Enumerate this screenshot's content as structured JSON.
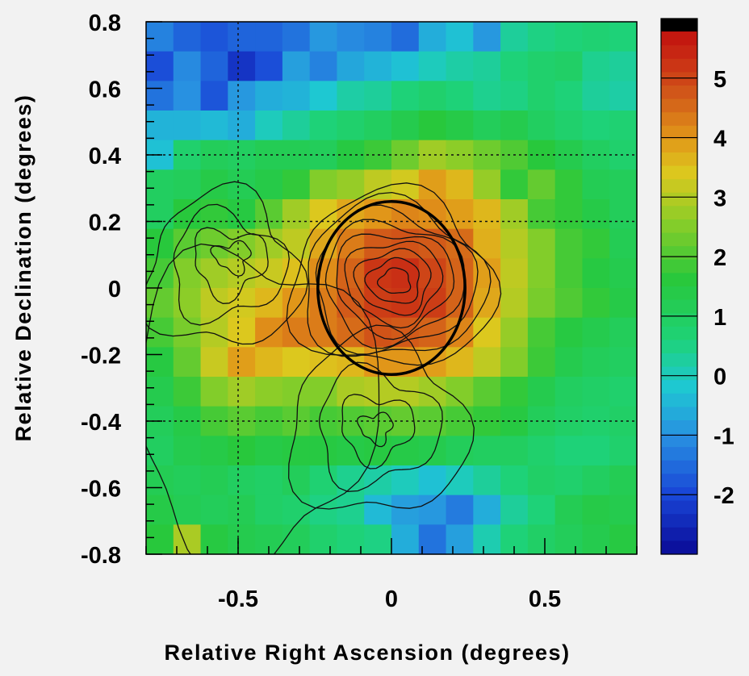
{
  "chart_data": {
    "type": "heatmap",
    "title": "",
    "xlabel": "Relative Right Ascension (degrees)",
    "ylabel": "Relative Declination (degrees)",
    "xlim": [
      -0.8,
      0.8
    ],
    "ylim": [
      -0.8,
      0.8
    ],
    "x_ticks": [
      -0.5,
      0,
      0.5
    ],
    "x_tick_labels": [
      "-0.5",
      "0",
      "0.5"
    ],
    "y_ticks": [
      0.8,
      0.6,
      0.4,
      0.2,
      0,
      -0.2,
      -0.4,
      -0.6,
      -0.8
    ],
    "y_tick_labels": [
      "0.8",
      "0.6",
      "0.4",
      "0.2",
      "0",
      "-0.2",
      "-0.4",
      "-0.6",
      "-0.8"
    ],
    "colorbar": {
      "range": [
        -3,
        6
      ],
      "ticks": [
        5,
        4,
        3,
        2,
        1,
        0,
        -1,
        -2
      ],
      "tick_labels": [
        "5",
        "4",
        "3",
        "2",
        "1",
        "0",
        "-1",
        "-2"
      ]
    },
    "grid": {
      "nx": 18,
      "ny": 18,
      "note_rows": "rows ordered from top (dec 0.8) to bottom (dec -0.8); columns from left (RA -0.8) to right (RA 0.8)",
      "values": [
        [
          -1.2,
          -1.6,
          -1.8,
          -1.6,
          -1.6,
          -1.4,
          -0.9,
          -1.1,
          -1.2,
          -1.5,
          -0.6,
          -0.3,
          -0.9,
          0.3,
          0.5,
          0.6,
          0.7,
          0.6
        ],
        [
          -1.9,
          -1.1,
          -1.6,
          -2.3,
          -1.9,
          -0.8,
          -1.2,
          -0.7,
          -0.5,
          -0.3,
          0.0,
          0.2,
          0.3,
          0.6,
          0.8,
          0.9,
          0.4,
          0.3
        ],
        [
          -1.4,
          -1.0,
          -1.8,
          -0.9,
          -0.6,
          -0.5,
          -0.2,
          0.2,
          0.3,
          0.6,
          0.8,
          0.6,
          0.4,
          0.5,
          0.8,
          0.6,
          0.3,
          0.2
        ],
        [
          -0.5,
          -0.5,
          -0.4,
          -0.6,
          0.0,
          0.3,
          0.6,
          0.8,
          1.0,
          1.3,
          1.6,
          1.4,
          1.1,
          1.3,
          1.0,
          0.8,
          0.6,
          0.7
        ],
        [
          -0.3,
          0.8,
          1.1,
          1.0,
          1.2,
          1.2,
          1.1,
          1.5,
          1.8,
          2.3,
          2.8,
          2.6,
          2.3,
          2.0,
          1.6,
          1.3,
          1.0,
          0.8
        ],
        [
          1.0,
          1.1,
          1.4,
          1.2,
          1.4,
          1.7,
          2.5,
          2.7,
          3.1,
          3.3,
          3.9,
          3.6,
          2.7,
          1.7,
          2.2,
          1.7,
          1.2,
          1.1
        ],
        [
          1.0,
          1.6,
          1.7,
          1.5,
          2.1,
          2.8,
          3.4,
          3.8,
          4.0,
          4.2,
          4.1,
          3.9,
          3.6,
          2.8,
          1.9,
          1.7,
          1.4,
          1.1
        ],
        [
          1.6,
          2.1,
          2.3,
          2.5,
          2.8,
          3.1,
          3.8,
          4.3,
          4.7,
          4.8,
          4.7,
          4.5,
          3.7,
          3.0,
          2.5,
          1.9,
          1.7,
          1.2
        ],
        [
          1.9,
          2.5,
          2.8,
          3.0,
          3.2,
          3.5,
          4.1,
          4.6,
          5.2,
          5.3,
          5.0,
          4.6,
          3.9,
          3.1,
          2.5,
          1.9,
          1.5,
          1.3
        ],
        [
          2.2,
          2.6,
          3.1,
          3.3,
          3.6,
          4.0,
          4.3,
          4.7,
          5.1,
          5.2,
          5.1,
          4.6,
          3.8,
          3.0,
          2.4,
          2.0,
          1.7,
          1.4
        ],
        [
          1.9,
          2.4,
          3.0,
          3.4,
          4.1,
          4.3,
          4.3,
          4.5,
          4.8,
          4.7,
          4.6,
          4.2,
          3.4,
          2.7,
          1.9,
          1.5,
          1.3,
          1.1
        ],
        [
          1.5,
          2.2,
          3.2,
          3.9,
          3.6,
          3.4,
          3.5,
          3.6,
          4.0,
          4.0,
          3.9,
          3.6,
          3.1,
          2.5,
          1.8,
          1.3,
          1.1,
          1.0
        ],
        [
          1.3,
          1.8,
          2.5,
          2.8,
          2.6,
          2.5,
          2.5,
          2.9,
          3.0,
          3.0,
          2.8,
          2.5,
          2.1,
          1.7,
          1.3,
          1.0,
          0.9,
          0.8
        ],
        [
          1.1,
          1.4,
          1.9,
          2.1,
          1.9,
          2.1,
          1.9,
          2.0,
          2.1,
          2.2,
          2.1,
          1.9,
          1.7,
          1.5,
          1.1,
          0.9,
          0.8,
          0.9
        ],
        [
          1.0,
          1.3,
          1.4,
          1.6,
          1.4,
          1.5,
          1.5,
          1.4,
          1.5,
          1.4,
          1.3,
          1.1,
          1.0,
          1.0,
          0.8,
          0.6,
          0.6,
          0.8
        ],
        [
          1.2,
          1.1,
          1.2,
          1.0,
          0.9,
          1.1,
          0.7,
          0.4,
          0.2,
          0.0,
          -0.3,
          0.0,
          0.3,
          0.6,
          0.9,
          0.8,
          1.0,
          1.2
        ],
        [
          1.4,
          1.2,
          1.1,
          1.2,
          0.9,
          0.8,
          0.5,
          0.4,
          -0.4,
          -0.8,
          -0.9,
          -1.3,
          -0.6,
          0.3,
          0.6,
          1.2,
          1.4,
          1.3
        ],
        [
          1.6,
          2.9,
          1.5,
          1.3,
          1.2,
          1.1,
          0.8,
          0.6,
          0.5,
          -0.6,
          -1.4,
          -0.8,
          0.1,
          0.6,
          0.9,
          1.1,
          1.3,
          1.5
        ]
      ]
    },
    "circle": {
      "center": [
        0.0,
        0.0
      ],
      "radius_x": 0.24,
      "radius_y": 0.26
    },
    "contours": {
      "main_peak": {
        "center": [
          0.0,
          0.02
        ],
        "levels": 9
      },
      "left_lobe": {
        "center": [
          -0.55,
          0.05
        ]
      },
      "lower_lobe": {
        "center": [
          -0.05,
          -0.42
        ]
      }
    },
    "dashed_lines": {
      "x": [
        -0.5
      ],
      "y": [
        0.4,
        0.2,
        -0.4
      ]
    }
  }
}
